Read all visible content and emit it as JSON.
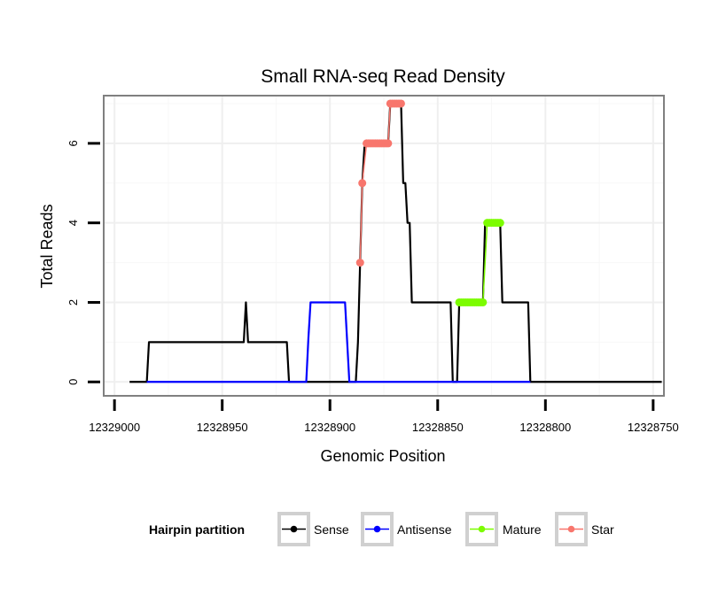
{
  "chart_data": {
    "type": "line",
    "title": "Small RNA-seq Read Density",
    "xlabel": "Genomic Position",
    "ylabel": "Total Reads",
    "x_reversed": true,
    "xlim": [
      12329005,
      12328745
    ],
    "ylim": [
      -0.35,
      7.2
    ],
    "x_ticks": [
      12329000,
      12328950,
      12328900,
      12328850,
      12328800,
      12328750
    ],
    "x_tick_labels": [
      "12329000",
      "12328950",
      "12328900",
      "12328850",
      "12328800",
      "12328750"
    ],
    "y_ticks": [
      0,
      2,
      4,
      6
    ],
    "y_tick_labels": [
      "0",
      "2",
      "4",
      "6"
    ],
    "grid": true,
    "legend": {
      "title": "Hairpin partition",
      "position": "bottom",
      "entries": [
        {
          "label": "Sense",
          "color": "#000000"
        },
        {
          "label": "Antisense",
          "color": "#0000ff"
        },
        {
          "label": "Mature",
          "color": "#7cfc00"
        },
        {
          "label": "Star",
          "color": "#f8766d"
        }
      ]
    },
    "series": [
      {
        "name": "Sense",
        "color": "#000000",
        "points": [
          [
            12328993,
            0
          ],
          [
            12328985,
            0
          ],
          [
            12328984,
            1
          ],
          [
            12328940,
            1
          ],
          [
            12328939,
            2
          ],
          [
            12328938,
            1
          ],
          [
            12328920,
            1
          ],
          [
            12328919,
            0
          ],
          [
            12328888,
            0
          ],
          [
            12328887,
            1
          ],
          [
            12328886,
            3
          ],
          [
            12328885,
            5
          ],
          [
            12328884,
            5.9
          ],
          [
            12328883,
            6
          ],
          [
            12328873,
            6
          ],
          [
            12328872,
            7
          ],
          [
            12328867,
            7
          ],
          [
            12328866,
            5
          ],
          [
            12328865,
            5
          ],
          [
            12328864,
            4
          ],
          [
            12328863,
            4
          ],
          [
            12328862,
            2
          ],
          [
            12328844,
            2
          ],
          [
            12328843,
            0
          ],
          [
            12328841,
            0
          ],
          [
            12328840,
            2
          ],
          [
            12328829,
            2
          ],
          [
            12328828,
            4
          ],
          [
            12328821,
            4
          ],
          [
            12328820,
            2
          ],
          [
            12328808,
            2
          ],
          [
            12328807,
            0
          ],
          [
            12328746,
            0
          ]
        ]
      },
      {
        "name": "Antisense",
        "color": "#0000ff",
        "points": [
          [
            12328985,
            0
          ],
          [
            12328911,
            0
          ],
          [
            12328910,
            1.1
          ],
          [
            12328909,
            2
          ],
          [
            12328893,
            2
          ],
          [
            12328892,
            1
          ],
          [
            12328891,
            0
          ],
          [
            12328807,
            0
          ]
        ]
      },
      {
        "name": "Mature",
        "color": "#7cfc00",
        "points": [
          [
            12328840,
            2
          ],
          [
            12328839,
            2
          ],
          [
            12328838,
            2
          ],
          [
            12328837,
            2
          ],
          [
            12328836,
            2
          ],
          [
            12328835,
            2
          ],
          [
            12328834,
            2
          ],
          [
            12328833,
            2
          ],
          [
            12328832,
            2
          ],
          [
            12328831,
            2
          ],
          [
            12328830,
            2
          ],
          [
            12328829,
            2
          ],
          [
            12328827,
            4
          ],
          [
            12328826,
            4
          ],
          [
            12328825,
            4
          ],
          [
            12328824,
            4
          ],
          [
            12328823,
            4
          ],
          [
            12328822,
            4
          ],
          [
            12328821,
            4
          ]
        ]
      },
      {
        "name": "Star",
        "color": "#f8766d",
        "points": [
          [
            12328886,
            3
          ],
          [
            12328885,
            5
          ],
          [
            12328883,
            6
          ],
          [
            12328882,
            6
          ],
          [
            12328881,
            6
          ],
          [
            12328880,
            6
          ],
          [
            12328879,
            6
          ],
          [
            12328878,
            6
          ],
          [
            12328877,
            6
          ],
          [
            12328876,
            6
          ],
          [
            12328875,
            6
          ],
          [
            12328874,
            6
          ],
          [
            12328873,
            6
          ],
          [
            12328872,
            7
          ],
          [
            12328871,
            7
          ],
          [
            12328870,
            7
          ],
          [
            12328869,
            7
          ],
          [
            12328868,
            7
          ],
          [
            12328867,
            7
          ]
        ]
      }
    ]
  }
}
